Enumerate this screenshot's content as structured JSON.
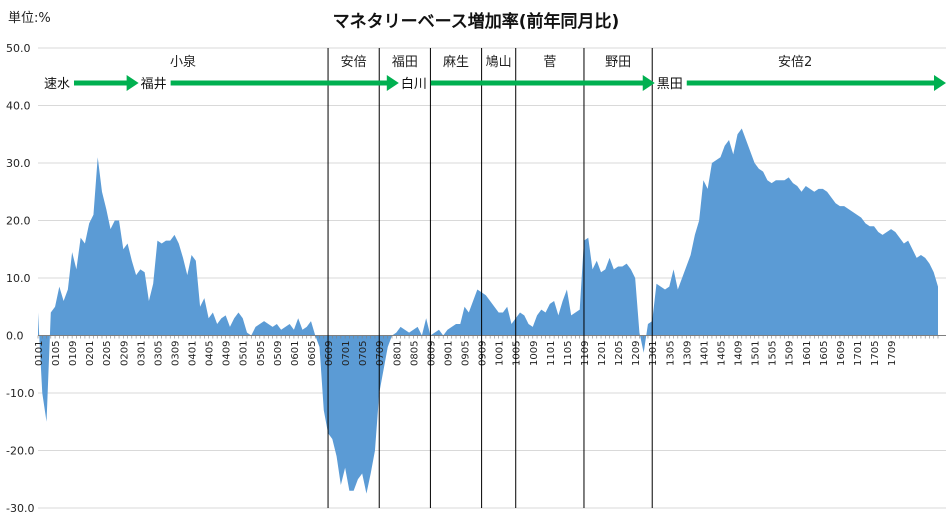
{
  "chart_data": {
    "type": "area",
    "title": "マネタリーベース増加率(前年同月比)",
    "unit_label": "単位:%",
    "ylim": [
      -30,
      50
    ],
    "yticks": [
      "50.0",
      "40.0",
      "30.0",
      "20.0",
      "10.0",
      "0.0",
      "-10.0",
      "-20.0",
      "-30.0"
    ],
    "ytick_values": [
      50,
      40,
      30,
      20,
      10,
      0,
      -10,
      -20,
      -30
    ],
    "x_tick_labels": [
      "0101",
      "0105",
      "0109",
      "0201",
      "0205",
      "0209",
      "0301",
      "0305",
      "0309",
      "0401",
      "0405",
      "0409",
      "0501",
      "0505",
      "0509",
      "0601",
      "0605",
      "0609",
      "0701",
      "0705",
      "0709",
      "0801",
      "0805",
      "0809",
      "0901",
      "0905",
      "0909",
      "1001",
      "1005",
      "1009",
      "1101",
      "1105",
      "1109",
      "1201",
      "1205",
      "1209",
      "1301",
      "1305",
      "1309",
      "1401",
      "1405",
      "1409",
      "1501",
      "1505",
      "1509",
      "1601",
      "1605",
      "1609",
      "1701",
      "1705",
      "1709"
    ],
    "series": [
      {
        "values": [
          4,
          -10,
          -15,
          4,
          5,
          8.5,
          6,
          8,
          14.5,
          11.5,
          17,
          16,
          19.5,
          21,
          31,
          25,
          22,
          18.5,
          20,
          20,
          15,
          16,
          13,
          10.5,
          11.5,
          11,
          6,
          9,
          16.5,
          16,
          16.5,
          16.5,
          17.5,
          16,
          13.5,
          10.5,
          14,
          13,
          5,
          6.5,
          3,
          4,
          2,
          3,
          3.5,
          1.5,
          3,
          4,
          3,
          0.5,
          0,
          1.5,
          2,
          2.5,
          2,
          1.5,
          2,
          1,
          1.5,
          2,
          1,
          3,
          1,
          1.5,
          2.5,
          0,
          -2,
          -13,
          -17,
          -18,
          -21,
          -26,
          -23,
          -27,
          -27,
          -25,
          -24,
          -27.5,
          -24,
          -20,
          -10,
          -6,
          -2,
          0,
          0.5,
          1.5,
          1,
          0.5,
          1,
          1.5,
          0,
          3,
          0,
          0.5,
          1,
          0,
          1,
          1.5,
          2,
          2,
          5,
          4,
          6,
          8,
          7.5,
          7,
          6,
          5,
          4,
          4,
          5,
          2,
          3,
          4,
          3.5,
          2,
          1.5,
          3.5,
          4.5,
          4,
          5.5,
          6,
          3.5,
          6,
          8,
          3.5,
          4,
          4.5,
          16.5,
          17,
          11.5,
          13,
          11,
          11.5,
          13.5,
          11.5,
          12,
          12,
          12.5,
          11.5,
          10,
          0.5,
          -3,
          2,
          2.5,
          9,
          8.5,
          8,
          8.5,
          11.5,
          8,
          10,
          12,
          14,
          17.5,
          20,
          27,
          25.5,
          30,
          30.5,
          31,
          33,
          34,
          31.5,
          35,
          36,
          34,
          32,
          30,
          29,
          28.5,
          27,
          26.5,
          27,
          27,
          27,
          27.5,
          26.5,
          26,
          25,
          26,
          25.5,
          25,
          25.5,
          25.5,
          25,
          24,
          23,
          22.5,
          22.5,
          22,
          21.5,
          21,
          20.5,
          19.5,
          19,
          19,
          18,
          17.5,
          18,
          18.5,
          18,
          17,
          16,
          16.5,
          15,
          13.5,
          14,
          13.5,
          12.5,
          11,
          8.5
        ]
      }
    ],
    "eras": [
      {
        "name": "小泉",
        "month_index": 0
      },
      {
        "name": "安倍",
        "month_index": 68
      },
      {
        "name": "福田",
        "month_index": 80
      },
      {
        "name": "麻生",
        "month_index": 92
      },
      {
        "name": "鳩山",
        "month_index": 104
      },
      {
        "name": "菅",
        "month_index": 112
      },
      {
        "name": "野田",
        "month_index": 128
      },
      {
        "name": "安倍2",
        "month_index": 144
      }
    ],
    "governors": [
      {
        "name": "速水",
        "month_index": 0
      },
      {
        "name": "福井",
        "month_index": 25
      },
      {
        "name": "白川",
        "month_index": 86
      },
      {
        "name": "黒田",
        "month_index": 146
      }
    ],
    "colors": {
      "area": "#5b9bd5",
      "arrow": "#00b050",
      "divider": "#000000",
      "grid": "#d9d9d9",
      "text": "#222222"
    },
    "grid": true,
    "legend": "none"
  }
}
